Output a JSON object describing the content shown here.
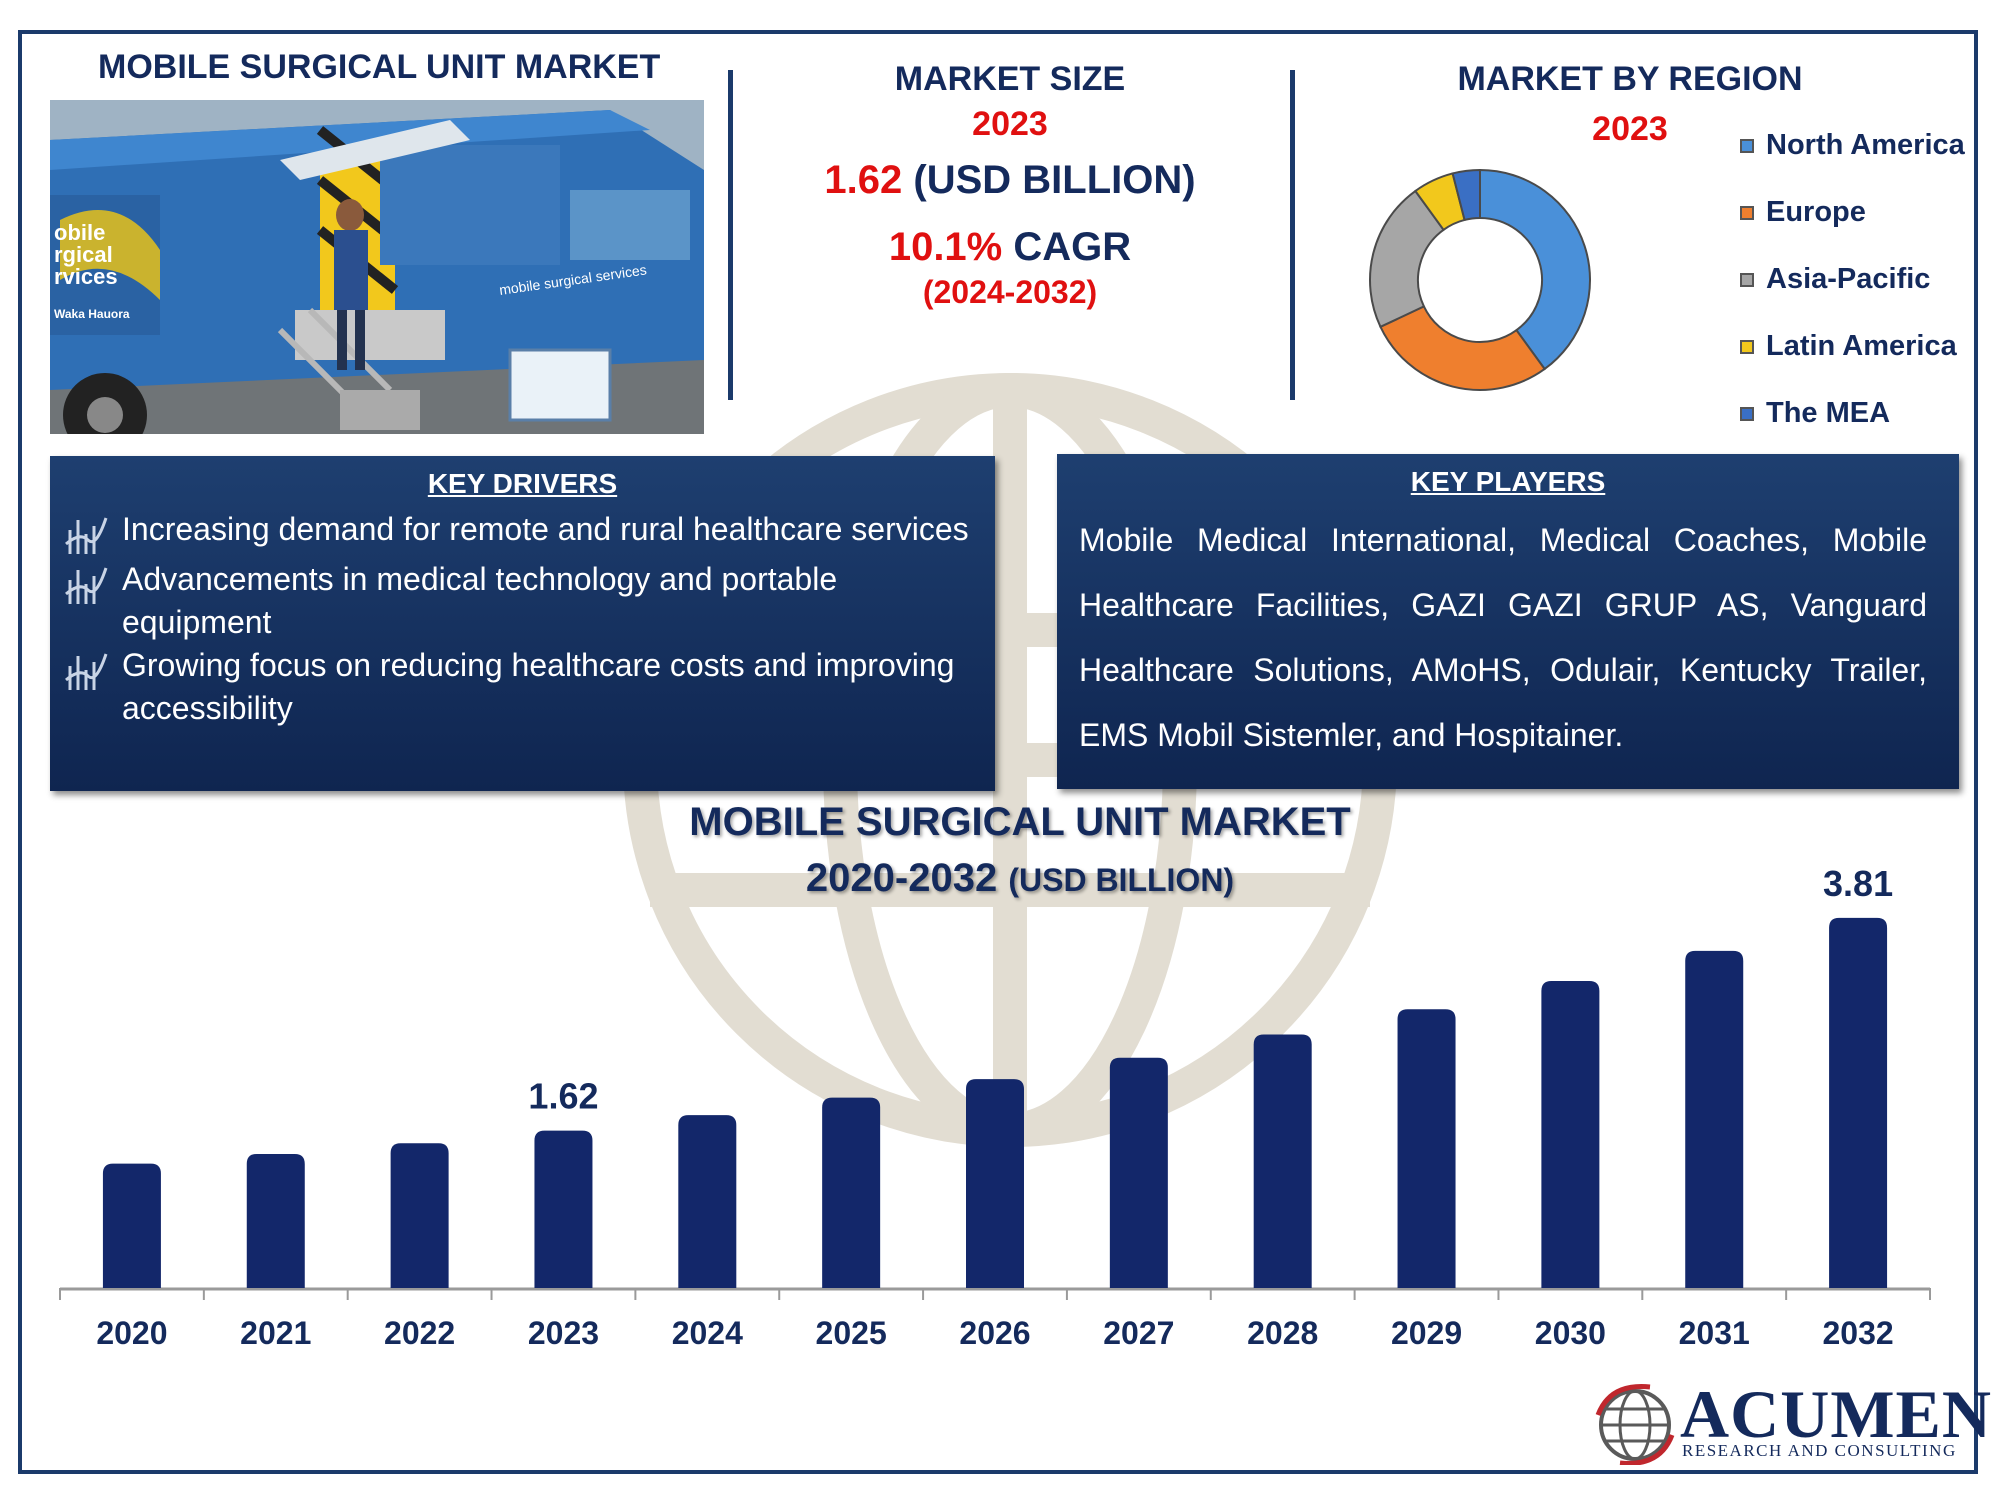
{
  "header": {
    "title": "MOBILE SURGICAL UNIT MARKET"
  },
  "market_size": {
    "label": "MARKET SIZE",
    "year": "2023",
    "value": "1.62",
    "unit": "(USD BILLION)",
    "cagr_value": "10.1%",
    "cagr_label": "CAGR",
    "cagr_period": "(2024-2032)"
  },
  "region": {
    "title": "MARKET BY REGION",
    "year": "2023",
    "legend": [
      {
        "name": "North America",
        "color": "#4a90d9"
      },
      {
        "name": "Europe",
        "color": "#ef7f2e"
      },
      {
        "name": "Asia-Pacific",
        "color": "#a6a6a6"
      },
      {
        "name": "Latin America",
        "color": "#f2c81c"
      },
      {
        "name": "The MEA",
        "color": "#3a6fc4"
      }
    ]
  },
  "key_drivers": {
    "title": "KEY DRIVERS",
    "items": [
      "Increasing demand for remote and rural healthcare services",
      "Advancements in medical technology and portable equipment",
      "Growing focus on reducing healthcare costs and improving accessibility"
    ]
  },
  "key_players": {
    "title": "KEY PLAYERS",
    "text": "Mobile Medical International, Medical Coaches, Mobile Healthcare Facilities, GAZI GAZI GRUP AS, Vanguard Healthcare Solutions, AMoHS, Odulair, Kentucky Trailer, EMS Mobil Sistemler, and Hospitainer."
  },
  "photo": {
    "caption_lines": [
      "obile",
      "rgical",
      "rvices"
    ],
    "caption_small": "Waka Hauora",
    "side_text": "mobile surgical services"
  },
  "chart_title": {
    "line1": "MOBILE SURGICAL UNIT MARKET",
    "line2": "2020-2032",
    "unit": "(USD BILLION)"
  },
  "chart_data": [
    {
      "type": "pie",
      "title": "MARKET BY REGION 2023",
      "categories": [
        "North America",
        "Europe",
        "Asia-Pacific",
        "Latin America",
        "The MEA"
      ],
      "values": [
        40,
        28,
        22,
        6,
        4
      ],
      "colors": [
        "#4a90d9",
        "#ef7f2e",
        "#a6a6a6",
        "#f2c81c",
        "#3a6fc4"
      ]
    },
    {
      "type": "bar",
      "title": "MOBILE SURGICAL UNIT MARKET 2020-2032 (USD BILLION)",
      "categories": [
        "2020",
        "2021",
        "2022",
        "2023",
        "2024",
        "2025",
        "2026",
        "2027",
        "2028",
        "2029",
        "2030",
        "2031",
        "2032"
      ],
      "values": [
        1.28,
        1.38,
        1.49,
        1.62,
        1.78,
        1.96,
        2.15,
        2.37,
        2.61,
        2.87,
        3.16,
        3.47,
        3.81
      ],
      "data_labels": {
        "3": "1.62",
        "12": "3.81"
      },
      "ylim": [
        0,
        4.2
      ],
      "bar_color": "#13276a"
    }
  ],
  "logo": {
    "word": "ACUMEN",
    "sub": "RESEARCH AND CONSULTING"
  }
}
